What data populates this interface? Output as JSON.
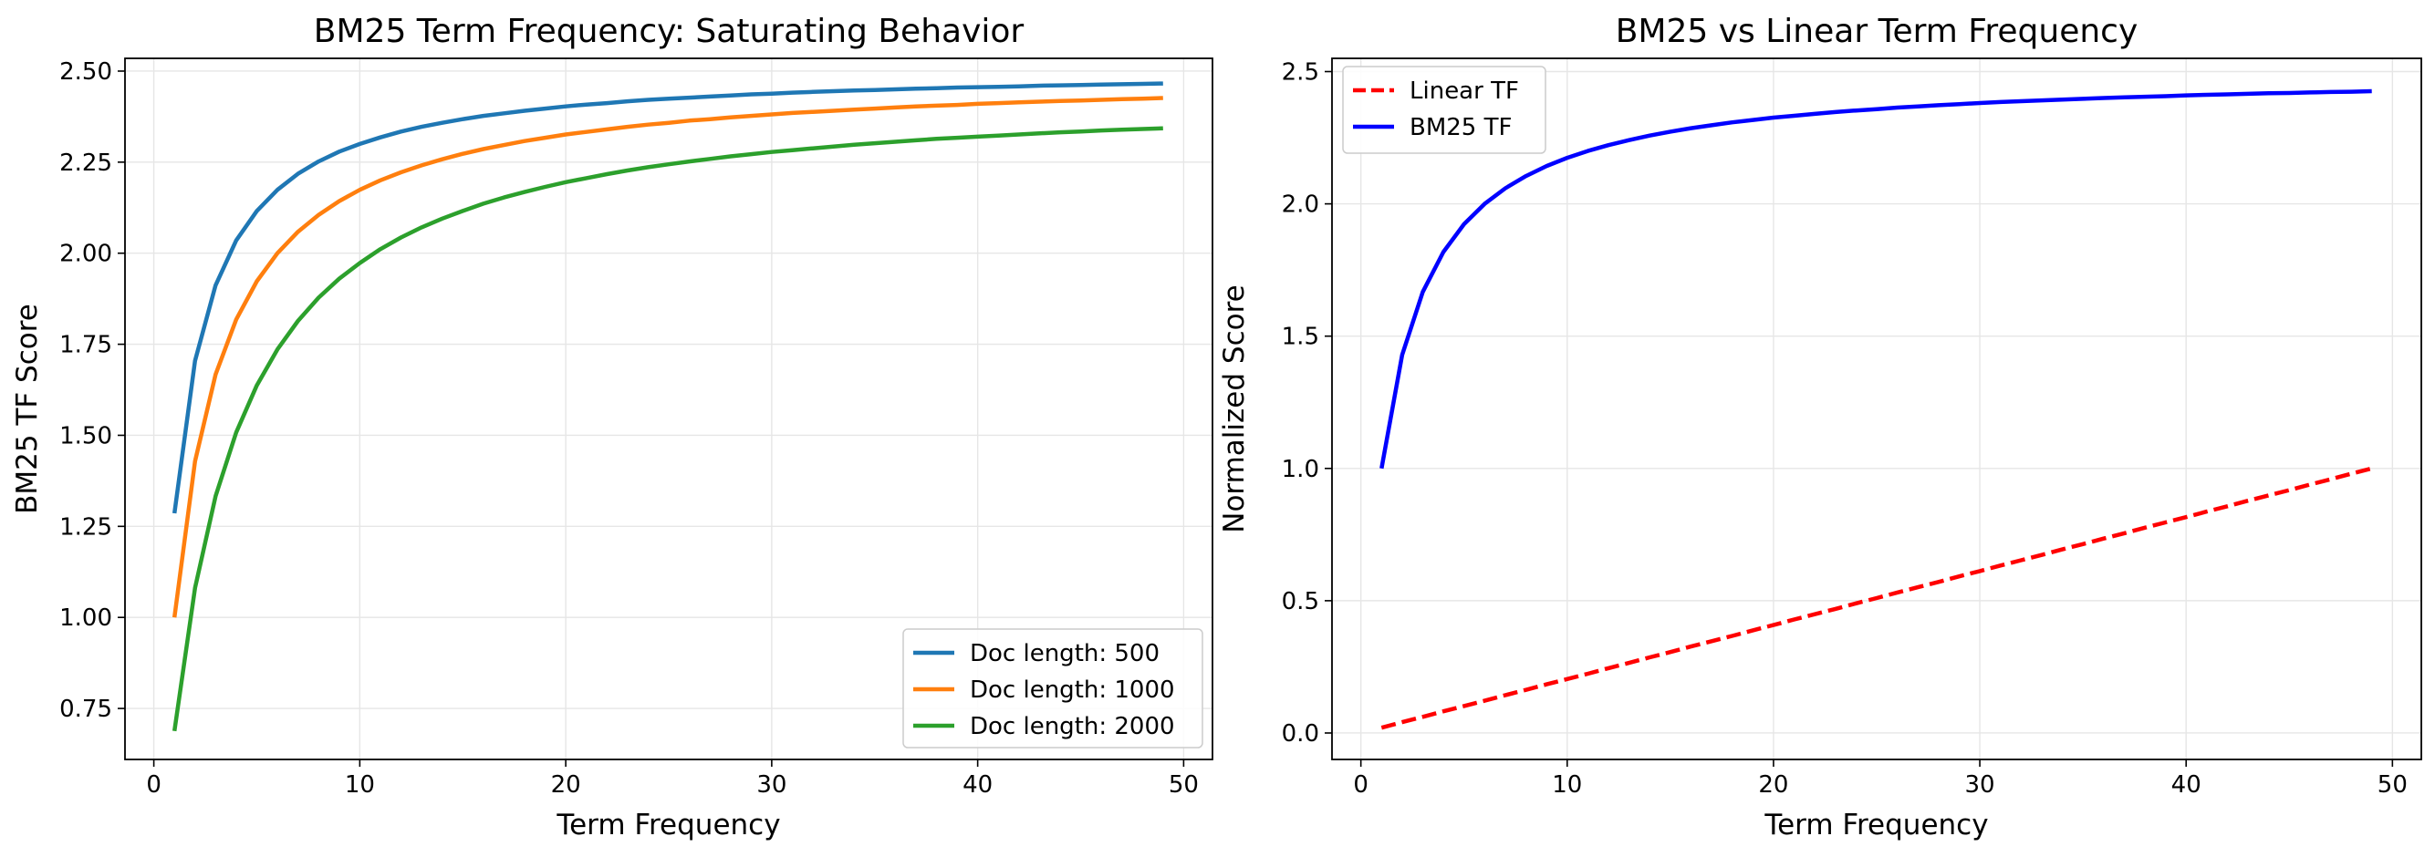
{
  "chart_data": [
    {
      "type": "line",
      "title": "BM25 Term Frequency: Saturating Behavior",
      "xlabel": "Term Frequency",
      "ylabel": "BM25 TF Score",
      "xlim": [
        -1.4,
        51.4
      ],
      "ylim": [
        0.61,
        2.535
      ],
      "xticks": [
        0,
        10,
        20,
        30,
        40,
        50
      ],
      "yticks": [
        0.75,
        1.0,
        1.25,
        1.5,
        1.75,
        2.0,
        2.25,
        2.5
      ],
      "ytick_labels": [
        "0.75",
        "1.00",
        "1.25",
        "1.50",
        "1.75",
        "2.00",
        "2.25",
        "2.50"
      ],
      "grid": true,
      "legend_position": "bottom-right",
      "x_range": [
        1,
        49
      ],
      "series": [
        {
          "name": "Doc length: 500",
          "color": "#1f77b4",
          "style": "solid",
          "values": [
            1.286,
            1.705,
            1.912,
            2.035,
            2.116,
            2.174,
            2.218,
            2.252,
            2.279,
            2.3,
            2.318,
            2.334,
            2.347,
            2.358,
            2.368,
            2.377,
            2.384,
            2.391,
            2.397,
            2.403,
            2.408,
            2.412,
            2.417,
            2.421,
            2.424,
            2.427,
            2.43,
            2.433,
            2.436,
            2.438,
            2.441,
            2.443,
            2.445,
            2.447,
            2.448,
            2.45,
            2.452,
            2.453,
            2.455,
            2.456,
            2.457,
            2.458,
            2.46,
            2.461,
            2.462,
            2.463,
            2.464,
            2.465,
            2.466
          ]
        },
        {
          "name": "Doc length: 1000",
          "color": "#ff7f0e",
          "style": "solid",
          "values": [
            1.0,
            1.429,
            1.667,
            1.818,
            1.923,
            2.0,
            2.059,
            2.105,
            2.143,
            2.174,
            2.2,
            2.222,
            2.241,
            2.258,
            2.273,
            2.286,
            2.297,
            2.308,
            2.317,
            2.326,
            2.333,
            2.34,
            2.347,
            2.353,
            2.358,
            2.364,
            2.368,
            2.373,
            2.377,
            2.381,
            2.385,
            2.388,
            2.391,
            2.394,
            2.397,
            2.4,
            2.403,
            2.405,
            2.407,
            2.41,
            2.412,
            2.414,
            2.416,
            2.418,
            2.419,
            2.421,
            2.423,
            2.424,
            2.426
          ]
        },
        {
          "name": "Doc length: 2000",
          "color": "#2ca02c",
          "style": "solid",
          "values": [
            0.688,
            1.081,
            1.333,
            1.508,
            1.637,
            1.736,
            1.814,
            1.878,
            1.93,
            1.973,
            2.011,
            2.043,
            2.071,
            2.095,
            2.116,
            2.136,
            2.153,
            2.168,
            2.182,
            2.195,
            2.206,
            2.217,
            2.227,
            2.236,
            2.244,
            2.252,
            2.259,
            2.266,
            2.272,
            2.278,
            2.283,
            2.288,
            2.293,
            2.298,
            2.302,
            2.306,
            2.31,
            2.314,
            2.317,
            2.32,
            2.323,
            2.326,
            2.329,
            2.332,
            2.334,
            2.337,
            2.339,
            2.341,
            2.343
          ]
        }
      ]
    },
    {
      "type": "line",
      "title": "BM25 vs Linear Term Frequency",
      "xlabel": "Term Frequency",
      "ylabel": "Normalized Score",
      "xlim": [
        -1.4,
        51.4
      ],
      "ylim": [
        -0.1,
        2.55
      ],
      "xticks": [
        0,
        10,
        20,
        30,
        40,
        50
      ],
      "yticks": [
        0.0,
        0.5,
        1.0,
        1.5,
        2.0,
        2.5
      ],
      "ytick_labels": [
        "0.0",
        "0.5",
        "1.0",
        "1.5",
        "2.0",
        "2.5"
      ],
      "grid": true,
      "legend_position": "top-left",
      "x_range": [
        1,
        49
      ],
      "series": [
        {
          "name": "Linear TF",
          "color": "#ff0000",
          "style": "dashed",
          "values": [
            0.02,
            0.041,
            0.061,
            0.082,
            0.102,
            0.122,
            0.143,
            0.163,
            0.184,
            0.204,
            0.224,
            0.245,
            0.265,
            0.286,
            0.306,
            0.327,
            0.347,
            0.367,
            0.388,
            0.408,
            0.429,
            0.449,
            0.469,
            0.49,
            0.51,
            0.531,
            0.551,
            0.571,
            0.592,
            0.612,
            0.633,
            0.653,
            0.673,
            0.694,
            0.714,
            0.735,
            0.755,
            0.776,
            0.796,
            0.816,
            0.837,
            0.857,
            0.878,
            0.898,
            0.918,
            0.939,
            0.959,
            0.98,
            1.0
          ]
        },
        {
          "name": "BM25 TF",
          "color": "#0000ff",
          "style": "solid",
          "values": [
            1.0,
            1.429,
            1.667,
            1.818,
            1.923,
            2.0,
            2.059,
            2.105,
            2.143,
            2.174,
            2.2,
            2.222,
            2.241,
            2.258,
            2.273,
            2.286,
            2.297,
            2.308,
            2.317,
            2.326,
            2.333,
            2.34,
            2.347,
            2.353,
            2.358,
            2.364,
            2.368,
            2.373,
            2.377,
            2.381,
            2.385,
            2.388,
            2.391,
            2.394,
            2.397,
            2.4,
            2.403,
            2.405,
            2.407,
            2.41,
            2.412,
            2.414,
            2.416,
            2.418,
            2.419,
            2.421,
            2.423,
            2.424,
            2.426
          ]
        }
      ]
    }
  ]
}
